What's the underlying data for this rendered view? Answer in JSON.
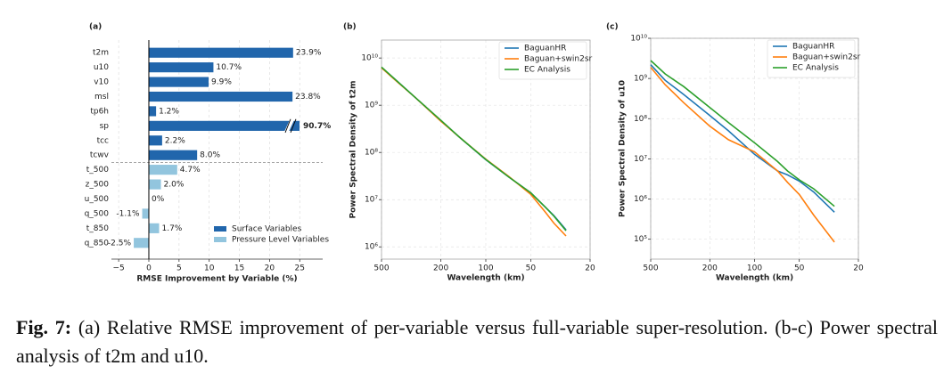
{
  "chart_data": [
    {
      "type": "bar",
      "horizontal": true,
      "title": "(a)",
      "xlabel": "RMSE Improvement by Variable (%)",
      "categories": [
        "t2m",
        "u10",
        "v10",
        "msl",
        "tp6h",
        "sp",
        "tcc",
        "tcwv",
        "t_500",
        "z_500",
        "u_500",
        "q_500",
        "t_850",
        "q_850"
      ],
      "series": [
        {
          "name": "Surface Variables",
          "color": "#2166ac",
          "values": [
            23.9,
            10.7,
            9.9,
            23.8,
            1.2,
            90.7,
            2.2,
            8.0,
            null,
            null,
            null,
            null,
            null,
            null
          ],
          "value_labels": [
            "23.9%",
            "10.7%",
            "9.9%",
            "23.8%",
            "1.2%",
            "90.7%",
            "2.2%",
            "8.0%",
            null,
            null,
            null,
            null,
            null,
            null
          ]
        },
        {
          "name": "Pressure Level Variables",
          "color": "#92c5de",
          "values": [
            null,
            null,
            null,
            null,
            null,
            null,
            null,
            null,
            4.7,
            2.0,
            0,
            -1.1,
            1.7,
            -2.5
          ],
          "value_labels": [
            null,
            null,
            null,
            null,
            null,
            null,
            null,
            null,
            "4.7%",
            "2.0%",
            "0%",
            "-1.1%",
            "1.7%",
            "-2.5%"
          ]
        }
      ],
      "xlim": [
        -6.2,
        28.8
      ],
      "xticks": [
        {
          "value": -5,
          "label": "−5"
        },
        0,
        5,
        10,
        15,
        20,
        25
      ],
      "grid": true,
      "legend": "lower right"
    },
    {
      "type": "line",
      "title": "(b)",
      "xlabel": "Wavelength (km)",
      "ylabel": "Power Spectral Density of t2m",
      "xscale": "log",
      "yscale": "log",
      "x": [
        500,
        400,
        300,
        200,
        150,
        100,
        70,
        50,
        40,
        35,
        29
      ],
      "series": [
        {
          "name": "BaguanHR",
          "color": "#1f77b4",
          "values": [
            6300000000.0,
            3400000000.0,
            1500000000.0,
            470000000.0,
            210000000.0,
            70000000.0,
            30000000.0,
            14000000.0,
            7000000.0,
            4600000.0,
            2300000.0
          ]
        },
        {
          "name": "Baguan+swin2sr",
          "color": "#ff7f0e",
          "values": [
            6200000000.0,
            3300000000.0,
            1500000000.0,
            460000000.0,
            210000000.0,
            72000000.0,
            31000000.0,
            13000000.0,
            5500000.0,
            3200000.0,
            1700000.0
          ]
        },
        {
          "name": "EC Analysis",
          "color": "#2ca02c",
          "values": [
            6400000000.0,
            3400000000.0,
            1500000000.0,
            480000000.0,
            210000000.0,
            71000000.0,
            30000000.0,
            14000000.0,
            7000000.0,
            4500000.0,
            2200000.0
          ]
        }
      ],
      "xlim": [
        500,
        20
      ],
      "xticks": [
        500,
        200,
        100,
        50,
        20
      ],
      "ylim": [
        550000.0,
        24000000000.0
      ],
      "yticks": [
        {
          "value": 1000000,
          "label": "10⁶"
        },
        {
          "value": 10000000,
          "label": "10⁷"
        },
        {
          "value": 100000000,
          "label": "10⁸"
        },
        {
          "value": 1000000000,
          "label": "10⁹"
        },
        {
          "value": 10000000000,
          "label": "10¹⁰"
        }
      ],
      "grid": true,
      "legend": "upper right"
    },
    {
      "type": "line",
      "title": "(c)",
      "xlabel": "Wavelength (km)",
      "ylabel": "Power Spectral Density of u10",
      "xscale": "log",
      "yscale": "log",
      "x": [
        500,
        400,
        300,
        200,
        150,
        100,
        70,
        60,
        50,
        40,
        29
      ],
      "series": [
        {
          "name": "BaguanHR",
          "color": "#1f77b4",
          "values": [
            2200000000.0,
            900000000.0,
            400000000.0,
            120000000.0,
            50000000.0,
            13000000.0,
            5000000.0,
            4000000.0,
            2800000.0,
            1500000.0,
            470000.0
          ]
        },
        {
          "name": "Baguan+swin2sr",
          "color": "#ff7f0e",
          "values": [
            1900000000.0,
            700000000.0,
            250000000.0,
            65000000.0,
            30000000.0,
            15000000.0,
            5000000.0,
            2600000.0,
            1300000.0,
            400000.0,
            85000.0
          ]
        },
        {
          "name": "EC Analysis",
          "color": "#2ca02c",
          "values": [
            2800000000.0,
            1300000000.0,
            630000000.0,
            190000000.0,
            80000000.0,
            25000000.0,
            8600000.0,
            5000000.0,
            3000000.0,
            1800000.0,
            660000.0
          ]
        }
      ],
      "xlim": [
        500,
        20
      ],
      "xticks": [
        500,
        200,
        100,
        50,
        20
      ],
      "ylim": [
        32000.0,
        10000000000.0
      ],
      "yticks": [
        {
          "value": 100000,
          "label": "10⁵"
        },
        {
          "value": 1000000,
          "label": "10⁶"
        },
        {
          "value": 10000000,
          "label": "10⁷"
        },
        {
          "value": 100000000,
          "label": "10⁸"
        },
        {
          "value": 1000000000,
          "label": "10⁹"
        },
        {
          "value": 10000000000,
          "label": "10¹⁰"
        }
      ],
      "grid": true,
      "legend": "upper right"
    }
  ],
  "caption": {
    "label": "Fig. 7:",
    "text": "(a) Relative RMSE improvement of per-variable versus full-variable super-resolution. (b-c) Power spectral analysis of t2m and u10."
  }
}
